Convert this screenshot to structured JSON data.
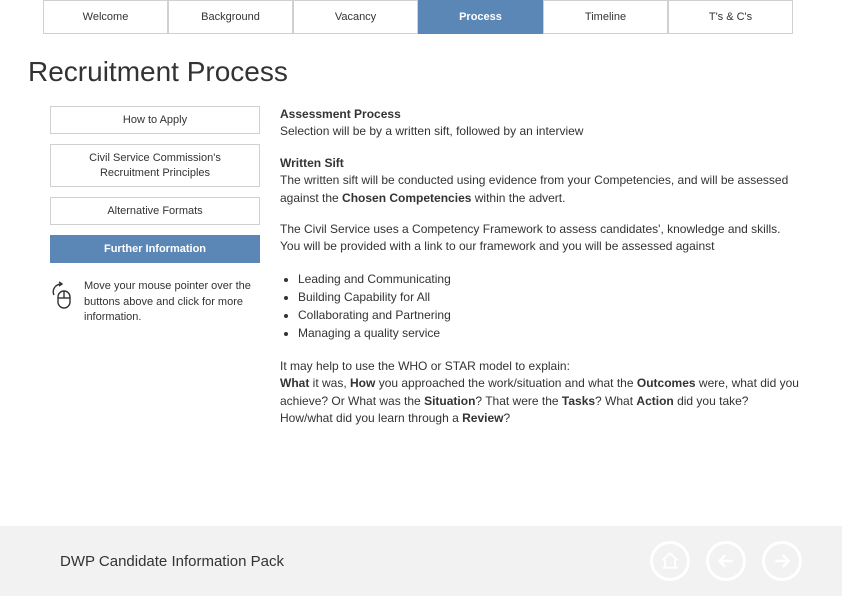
{
  "nav": {
    "tabs": [
      {
        "label": "Welcome",
        "active": false
      },
      {
        "label": "Background",
        "active": false
      },
      {
        "label": "Vacancy",
        "active": false
      },
      {
        "label": "Process",
        "active": true
      },
      {
        "label": "Timeline",
        "active": false
      },
      {
        "label": "T's & C's",
        "active": false
      }
    ]
  },
  "page_title": "Recruitment Process",
  "sidebar": {
    "buttons": [
      {
        "label": "How to Apply",
        "active": false
      },
      {
        "label": "Civil Service Commission's Recruitment Principles",
        "active": false
      },
      {
        "label": "Alternative Formats",
        "active": false
      },
      {
        "label": "Further Information",
        "active": true
      }
    ],
    "hint": "Move your mouse pointer over the buttons above and click for more information."
  },
  "main": {
    "ap_h": "Assessment Process",
    "ap_b": "Selection will be by a written sift, followed by an interview",
    "ws_h": "Written Sift",
    "ws_b1": "The written sift will be conducted using evidence from your Competencies, and will be assessed against the ",
    "ws_s": "Chosen Competencies",
    "ws_b2": " within the advert.",
    "cf": "The Civil Service uses a Competency Framework to assess candidates', knowledge and skills. You will be provided with a link to our framework and you will be assessed against",
    "competencies": [
      "Leading and Communicating",
      "Building Capability for All",
      "Collaborating and Partnering",
      "Managing a quality service"
    ],
    "who_1": "It may help to use the WHO or STAR model to explain:",
    "w_what": "What",
    "w_t1": " it was, ",
    "w_how": "How",
    "w_t2": " you approached the work/situation and what the ",
    "w_out": "Outcomes",
    "w_t3": " were, what did you achieve? Or What was the ",
    "w_sit": "Situation",
    "w_t4": "? That were the ",
    "w_task": "Tasks",
    "w_t5": "? What ",
    "w_act": "Action",
    "w_t6": " did you take? How/what did you learn through a ",
    "w_rev": "Review",
    "w_t7": "?"
  },
  "footer": {
    "text": "DWP Candidate Information Pack"
  },
  "colors": {
    "tab_active": "#5b87b7",
    "border": "#d0d0d0",
    "footer_bg": "#f2f2f2"
  }
}
